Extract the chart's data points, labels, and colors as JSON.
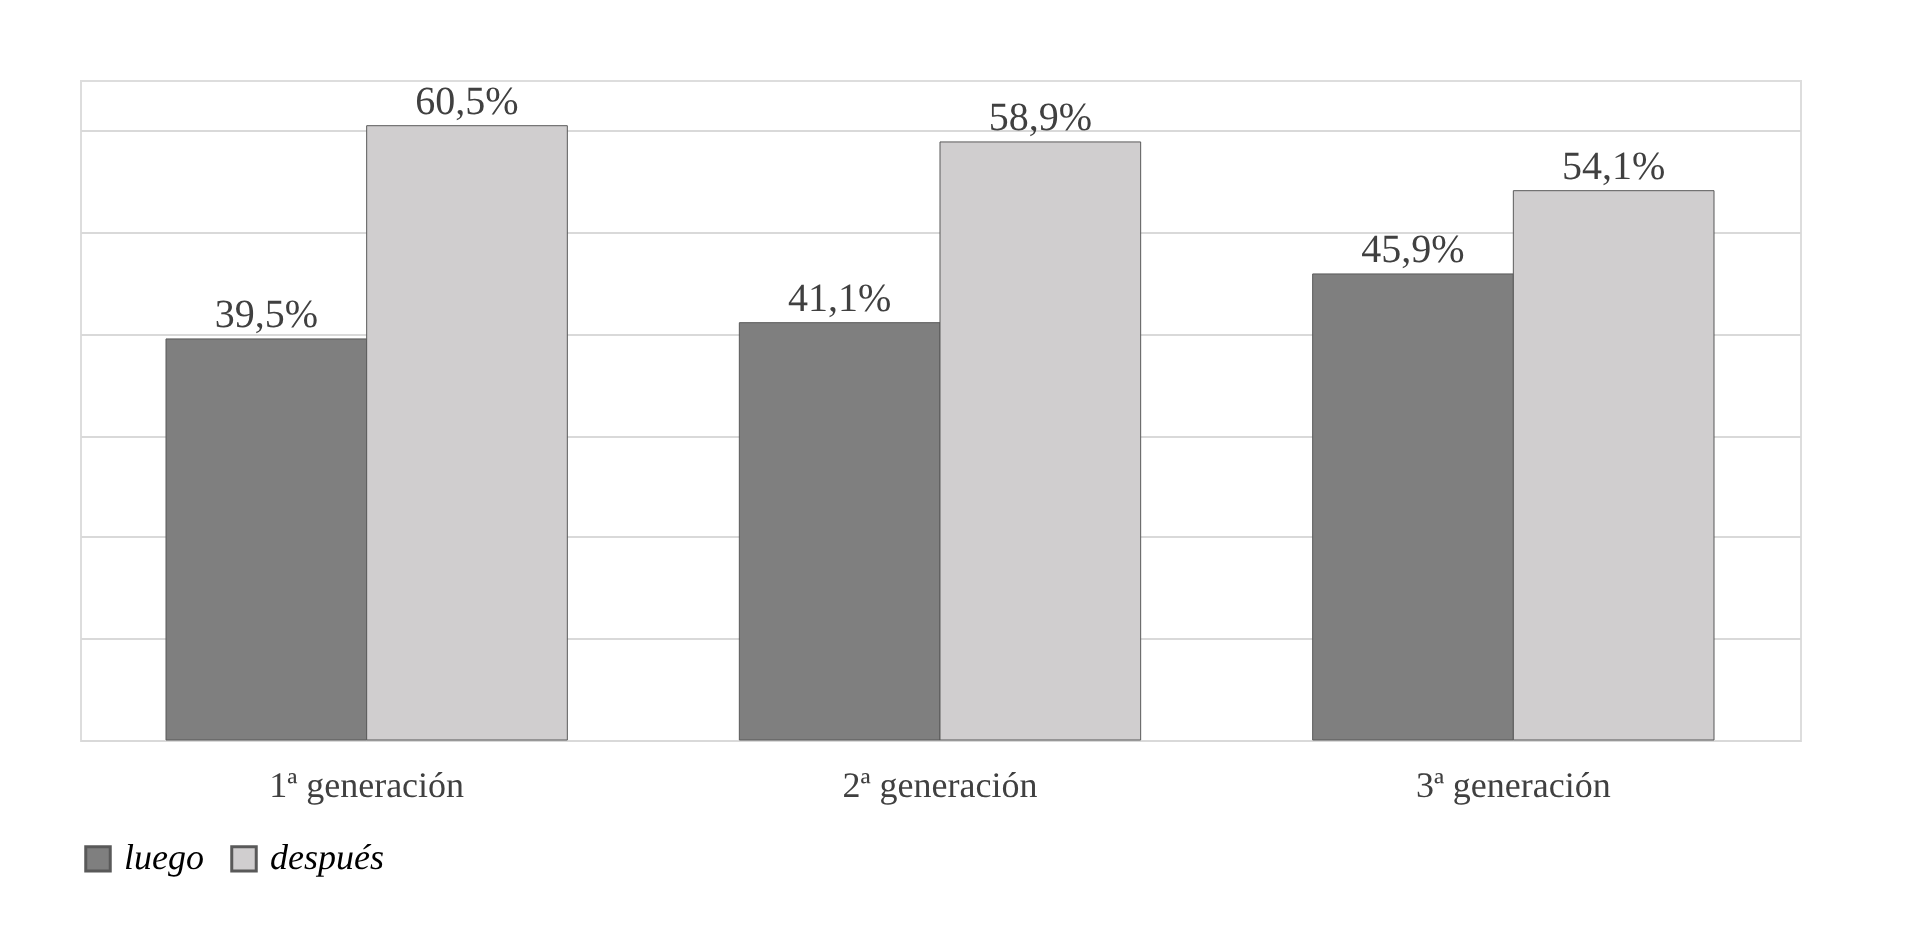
{
  "chart_data": {
    "type": "bar",
    "categories": [
      "1ª generación",
      "2ª generación",
      "3ª generación"
    ],
    "series": [
      {
        "name": "luego",
        "color": "#7f7f7f",
        "values": [
          39.5,
          41.1,
          45.9
        ],
        "value_labels": [
          "39,5%",
          "41,1%",
          "45,9%"
        ]
      },
      {
        "name": "después",
        "color": "#d0cecf",
        "values": [
          60.5,
          58.9,
          54.1
        ],
        "value_labels": [
          "60,5%",
          "58,9%",
          "54,1%"
        ]
      }
    ],
    "tick_labels": "x",
    "grid": "y",
    "legend": "bottom"
  }
}
